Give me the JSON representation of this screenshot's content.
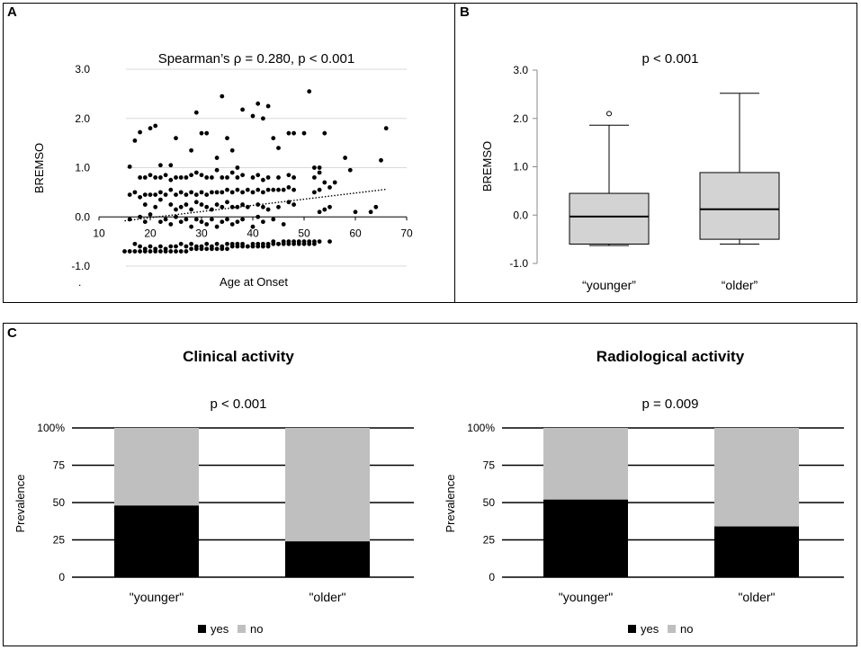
{
  "panels": {
    "a_letter": "A",
    "b_letter": "B",
    "c_letter": "C",
    "stray_mark": "."
  },
  "colors": {
    "grid": "#d9d9d9",
    "dot": "#000000",
    "box_fill": "#d3d3d3",
    "bar_yes": "#000000",
    "bar_no": "#bfbfbf",
    "frame": "#000000"
  },
  "chart_data": [
    {
      "id": "A",
      "type": "scatter",
      "title": "Spearman’s ρ = 0.280, p < 0.001",
      "xlabel": "Age at Onset",
      "ylabel": "BREMSO",
      "xlim": [
        10,
        70
      ],
      "ylim": [
        -1.0,
        3.0
      ],
      "xticks": [
        "10",
        "20",
        "30",
        "40",
        "50",
        "60",
        "70"
      ],
      "yticks": [
        "-1.0",
        "0.0",
        "1.0",
        "2.0",
        "3.0"
      ],
      "trendline": {
        "x": [
          15,
          66
        ],
        "y": [
          -0.08,
          0.56
        ],
        "style": "dotted"
      },
      "points": [
        [
          16,
          1.02
        ],
        [
          17,
          1.55
        ],
        [
          18,
          1.72
        ],
        [
          20,
          1.8
        ],
        [
          21,
          1.85
        ],
        [
          22,
          1.05
        ],
        [
          24,
          1.05
        ],
        [
          25,
          1.6
        ],
        [
          28,
          1.35
        ],
        [
          29,
          2.12
        ],
        [
          30,
          1.7
        ],
        [
          31,
          1.7
        ],
        [
          33,
          1.2
        ],
        [
          34,
          2.45
        ],
        [
          35,
          1.6
        ],
        [
          36,
          1.35
        ],
        [
          37,
          1.0
        ],
        [
          38,
          2.18
        ],
        [
          40,
          2.05
        ],
        [
          41,
          2.3
        ],
        [
          42,
          2.0
        ],
        [
          43,
          2.25
        ],
        [
          44,
          1.6
        ],
        [
          45,
          1.4
        ],
        [
          47,
          1.7
        ],
        [
          48,
          1.7
        ],
        [
          50,
          1.7
        ],
        [
          51,
          2.55
        ],
        [
          52,
          1.0
        ],
        [
          53,
          1.0
        ],
        [
          54,
          1.7
        ],
        [
          58,
          1.2
        ],
        [
          59,
          0.95
        ],
        [
          65,
          1.15
        ],
        [
          66,
          1.8
        ],
        [
          16,
          0.45
        ],
        [
          17,
          0.5
        ],
        [
          18,
          0.4
        ],
        [
          19,
          0.45
        ],
        [
          20,
          0.45
        ],
        [
          21,
          0.45
        ],
        [
          22,
          0.5
        ],
        [
          23,
          0.45
        ],
        [
          24,
          0.55
        ],
        [
          25,
          0.45
        ],
        [
          26,
          0.5
        ],
        [
          27,
          0.45
        ],
        [
          28,
          0.5
        ],
        [
          29,
          0.45
        ],
        [
          30,
          0.5
        ],
        [
          31,
          0.45
        ],
        [
          32,
          0.5
        ],
        [
          33,
          0.5
        ],
        [
          34,
          0.5
        ],
        [
          35,
          0.55
        ],
        [
          36,
          0.5
        ],
        [
          37,
          0.55
        ],
        [
          38,
          0.5
        ],
        [
          39,
          0.55
        ],
        [
          40,
          0.5
        ],
        [
          41,
          0.55
        ],
        [
          42,
          0.5
        ],
        [
          43,
          0.55
        ],
        [
          44,
          0.55
        ],
        [
          45,
          0.55
        ],
        [
          46,
          0.55
        ],
        [
          47,
          0.6
        ],
        [
          48,
          0.55
        ],
        [
          52,
          0.5
        ],
        [
          53,
          0.55
        ],
        [
          55,
          0.6
        ],
        [
          56,
          0.7
        ],
        [
          18,
          0.8
        ],
        [
          19,
          0.8
        ],
        [
          20,
          0.85
        ],
        [
          21,
          0.8
        ],
        [
          22,
          0.8
        ],
        [
          23,
          0.85
        ],
        [
          24,
          0.75
        ],
        [
          25,
          0.8
        ],
        [
          26,
          0.8
        ],
        [
          27,
          0.8
        ],
        [
          28,
          0.85
        ],
        [
          29,
          0.9
        ],
        [
          30,
          0.85
        ],
        [
          31,
          0.8
        ],
        [
          32,
          0.8
        ],
        [
          33,
          0.95
        ],
        [
          34,
          0.8
        ],
        [
          35,
          0.8
        ],
        [
          36,
          0.9
        ],
        [
          37,
          0.8
        ],
        [
          38,
          0.85
        ],
        [
          40,
          0.8
        ],
        [
          41,
          0.85
        ],
        [
          42,
          0.75
        ],
        [
          43,
          0.8
        ],
        [
          45,
          0.8
        ],
        [
          47,
          0.85
        ],
        [
          48,
          0.8
        ],
        [
          52,
          0.8
        ],
        [
          53,
          0.9
        ],
        [
          54,
          0.7
        ],
        [
          19,
          0.25
        ],
        [
          21,
          0.2
        ],
        [
          22,
          0.35
        ],
        [
          24,
          0.25
        ],
        [
          25,
          0.15
        ],
        [
          26,
          0.2
        ],
        [
          27,
          0.25
        ],
        [
          28,
          0.15
        ],
        [
          29,
          0.3
        ],
        [
          30,
          0.25
        ],
        [
          31,
          0.2
        ],
        [
          32,
          0.15
        ],
        [
          33,
          0.25
        ],
        [
          34,
          0.2
        ],
        [
          35,
          0.3
        ],
        [
          36,
          0.2
        ],
        [
          37,
          0.2
        ],
        [
          38,
          0.25
        ],
        [
          39,
          0.2
        ],
        [
          41,
          0.25
        ],
        [
          42,
          0.2
        ],
        [
          43,
          0.15
        ],
        [
          45,
          0.2
        ],
        [
          47,
          0.3
        ],
        [
          48,
          0.25
        ],
        [
          53,
          0.1
        ],
        [
          54,
          0.15
        ],
        [
          55,
          0.2
        ],
        [
          60,
          0.1
        ],
        [
          63,
          0.1
        ],
        [
          64,
          0.2
        ],
        [
          16,
          -0.05
        ],
        [
          18,
          0.0
        ],
        [
          19,
          -0.1
        ],
        [
          20,
          0.05
        ],
        [
          22,
          -0.1
        ],
        [
          23,
          -0.05
        ],
        [
          24,
          -0.15
        ],
        [
          25,
          0.0
        ],
        [
          26,
          -0.1
        ],
        [
          27,
          -0.05
        ],
        [
          28,
          -0.2
        ],
        [
          29,
          -0.05
        ],
        [
          30,
          -0.1
        ],
        [
          31,
          -0.15
        ],
        [
          32,
          -0.05
        ],
        [
          33,
          -0.2
        ],
        [
          34,
          -0.1
        ],
        [
          35,
          -0.05
        ],
        [
          36,
          -0.15
        ],
        [
          37,
          -0.1
        ],
        [
          38,
          -0.05
        ],
        [
          40,
          -0.2
        ],
        [
          41,
          0.0
        ],
        [
          42,
          -0.1
        ],
        [
          44,
          -0.05
        ],
        [
          46,
          -0.15
        ],
        [
          17,
          -0.55
        ],
        [
          18,
          -0.6
        ],
        [
          19,
          -0.65
        ],
        [
          20,
          -0.6
        ],
        [
          21,
          -0.65
        ],
        [
          22,
          -0.6
        ],
        [
          23,
          -0.65
        ],
        [
          24,
          -0.6
        ],
        [
          25,
          -0.6
        ],
        [
          26,
          -0.55
        ],
        [
          27,
          -0.6
        ],
        [
          28,
          -0.55
        ],
        [
          29,
          -0.6
        ],
        [
          30,
          -0.6
        ],
        [
          31,
          -0.55
        ],
        [
          32,
          -0.6
        ],
        [
          33,
          -0.55
        ],
        [
          34,
          -0.6
        ],
        [
          35,
          -0.55
        ],
        [
          36,
          -0.55
        ],
        [
          37,
          -0.55
        ],
        [
          38,
          -0.55
        ],
        [
          39,
          -0.6
        ],
        [
          40,
          -0.55
        ],
        [
          41,
          -0.55
        ],
        [
          42,
          -0.55
        ],
        [
          43,
          -0.55
        ],
        [
          44,
          -0.5
        ],
        [
          45,
          -0.55
        ],
        [
          46,
          -0.5
        ],
        [
          47,
          -0.5
        ],
        [
          48,
          -0.5
        ],
        [
          49,
          -0.5
        ],
        [
          50,
          -0.5
        ],
        [
          51,
          -0.5
        ],
        [
          52,
          -0.5
        ],
        [
          55,
          -0.5
        ],
        [
          15,
          -0.7
        ],
        [
          16,
          -0.7
        ],
        [
          17,
          -0.7
        ],
        [
          18,
          -0.7
        ],
        [
          19,
          -0.7
        ],
        [
          20,
          -0.7
        ],
        [
          21,
          -0.7
        ],
        [
          22,
          -0.7
        ],
        [
          23,
          -0.7
        ],
        [
          24,
          -0.7
        ],
        [
          25,
          -0.7
        ],
        [
          26,
          -0.7
        ],
        [
          27,
          -0.7
        ],
        [
          28,
          -0.65
        ],
        [
          29,
          -0.65
        ],
        [
          30,
          -0.65
        ],
        [
          31,
          -0.65
        ],
        [
          32,
          -0.65
        ],
        [
          33,
          -0.65
        ],
        [
          34,
          -0.65
        ],
        [
          35,
          -0.65
        ],
        [
          36,
          -0.6
        ],
        [
          37,
          -0.6
        ],
        [
          38,
          -0.6
        ],
        [
          39,
          -0.6
        ],
        [
          40,
          -0.6
        ],
        [
          41,
          -0.6
        ],
        [
          42,
          -0.6
        ],
        [
          43,
          -0.6
        ],
        [
          44,
          -0.55
        ],
        [
          45,
          -0.55
        ],
        [
          46,
          -0.55
        ],
        [
          47,
          -0.55
        ],
        [
          48,
          -0.55
        ],
        [
          49,
          -0.55
        ],
        [
          50,
          -0.55
        ],
        [
          51,
          -0.55
        ],
        [
          52,
          -0.55
        ],
        [
          53,
          -0.5
        ]
      ]
    },
    {
      "id": "B",
      "type": "box",
      "title": "p < 0.001",
      "ylabel": "BREMSO",
      "ylim": [
        -1.0,
        3.0
      ],
      "yticks": [
        "-1.0",
        "0.0",
        "1.0",
        "2.0",
        "3.0"
      ],
      "categories": [
        "“younger”",
        "“older”"
      ],
      "boxes": [
        {
          "min": -0.63,
          "q1": -0.6,
          "median": -0.03,
          "q3": 0.45,
          "max": 1.86,
          "outliers": [
            2.1
          ]
        },
        {
          "min": -0.6,
          "q1": -0.5,
          "median": 0.12,
          "q3": 0.88,
          "max": 2.52,
          "outliers": []
        }
      ]
    },
    {
      "id": "C-clinical",
      "type": "bar",
      "stacked": true,
      "title": "Clinical activity",
      "subtitle": "p < 0.001",
      "ylabel": "Prevalence",
      "ylim": [
        0,
        100
      ],
      "yticks": [
        "0",
        "25",
        "50",
        "75",
        "100%"
      ],
      "categories": [
        "\"younger\"",
        "\"older\""
      ],
      "series": [
        {
          "name": "yes",
          "values": [
            48,
            24
          ]
        },
        {
          "name": "no",
          "values": [
            52,
            76
          ]
        }
      ]
    },
    {
      "id": "C-radiological",
      "type": "bar",
      "stacked": true,
      "title": "Radiological activity",
      "subtitle": "p = 0.009",
      "ylabel": "Prevalence",
      "ylim": [
        0,
        100
      ],
      "yticks": [
        "0",
        "25",
        "50",
        "75",
        "100%"
      ],
      "categories": [
        "\"younger\"",
        "\"older\""
      ],
      "series": [
        {
          "name": "yes",
          "values": [
            52,
            34
          ]
        },
        {
          "name": "no",
          "values": [
            48,
            66
          ]
        }
      ]
    }
  ]
}
